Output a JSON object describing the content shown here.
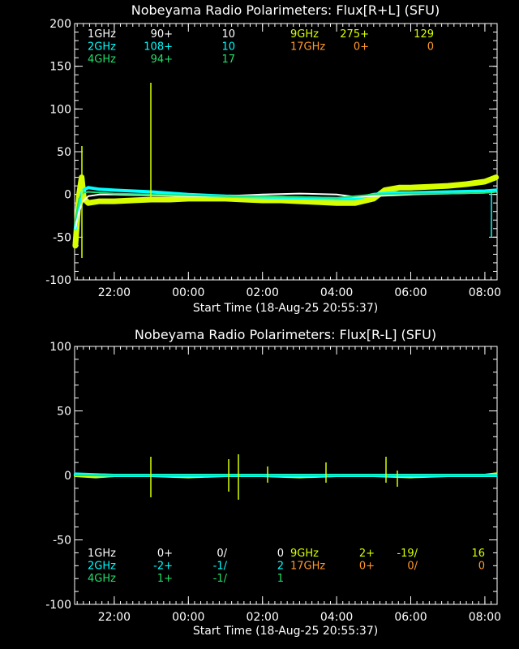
{
  "colors": {
    "background": "#000000",
    "axes": "#ffffff",
    "1GHz": "#ffffff",
    "2GHz": "#00ffff",
    "4GHz": "#22e06a",
    "9GHz": "#d8ff00",
    "17GHz": "#ff9a2a"
  },
  "chart_data": [
    {
      "type": "line",
      "title": "Nobeyama Radio Polarimeters: Flux[R+L] (SFU)",
      "xlabel": "Start Time (18-Aug-25 20:55:37)",
      "ylim": [
        -100,
        200
      ],
      "yticks": [
        -100,
        -50,
        0,
        50,
        100,
        150,
        200
      ],
      "ytick_labels": [
        "-100",
        "-50",
        "0",
        "50",
        "100",
        "150",
        "200"
      ],
      "xlim_hours": [
        20.93,
        32.33
      ],
      "xticks": [
        22,
        24,
        26,
        28,
        30,
        32
      ],
      "xtick_labels": [
        "22:00",
        "00:00",
        "02:00",
        "04:00",
        "06:00",
        "08:00"
      ],
      "grid": false,
      "legend_rows": [
        [
          {
            "band": "1GHz",
            "c1": "90+",
            "c2": "10",
            "colorKey": "1GHz"
          },
          {
            "band": "9GHz",
            "c1": "275+",
            "c2": "129",
            "colorKey": "9GHz"
          }
        ],
        [
          {
            "band": "2GHz",
            "c1": "108+",
            "c2": "10",
            "colorKey": "2GHz"
          },
          {
            "band": "17GHz",
            "c1": "0+",
            "c2": "0",
            "colorKey": "17GHz"
          }
        ],
        [
          {
            "band": "4GHz",
            "c1": "94+",
            "c2": "17",
            "colorKey": "4GHz"
          }
        ]
      ],
      "series": [
        {
          "name": "9GHz",
          "colorKey": "9GHz",
          "x": [
            20.95,
            21.05,
            21.12,
            21.18,
            21.3,
            21.6,
            22,
            22.5,
            23,
            23.5,
            24,
            24.5,
            25,
            25.5,
            26,
            26.5,
            27,
            27.5,
            28,
            28.5,
            29,
            29.3,
            29.7,
            30,
            30.5,
            31,
            31.5,
            32,
            32.3
          ],
          "y": [
            -60,
            0,
            20,
            -5,
            -10,
            -8,
            -8,
            -7,
            -6,
            -6,
            -5,
            -5,
            -5,
            -6,
            -7,
            -7,
            -8,
            -9,
            -10,
            -10,
            -5,
            5,
            8,
            8,
            9,
            10,
            12,
            15,
            20
          ]
        },
        {
          "name": "2GHz",
          "colorKey": "2GHz",
          "x": [
            20.95,
            21.05,
            21.15,
            21.3,
            21.6,
            22,
            23,
            24,
            25,
            26,
            27,
            28,
            28.5,
            29,
            29.5,
            30,
            31,
            32,
            32.3
          ],
          "y": [
            -40,
            -10,
            5,
            8,
            6,
            5,
            3,
            0,
            -2,
            -3,
            -4,
            -5,
            -5,
            0,
            2,
            2,
            3,
            4,
            5
          ]
        },
        {
          "name": "1GHz",
          "colorKey": "1GHz",
          "x": [
            20.95,
            21.05,
            21.15,
            21.3,
            21.6,
            22,
            23,
            24,
            25,
            26,
            27,
            28,
            28.5,
            29,
            29.5,
            30,
            31,
            32,
            32.3
          ],
          "y": [
            -40,
            -20,
            -8,
            -2,
            0,
            0,
            -1,
            -2,
            -2,
            0,
            1,
            0,
            -3,
            -2,
            -1,
            0,
            1,
            2,
            3
          ]
        },
        {
          "name": "4GHz",
          "colorKey": "4GHz",
          "x": [
            20.95,
            21.05,
            21.15,
            21.3,
            22,
            23,
            24,
            25,
            26,
            27,
            28,
            29,
            30,
            31,
            32,
            32.3
          ],
          "y": [
            -30,
            -5,
            2,
            3,
            1,
            0,
            -1,
            -2,
            -2,
            -3,
            -4,
            0,
            1,
            1,
            2,
            3
          ]
        }
      ]
    },
    {
      "type": "line",
      "title": "Nobeyama Radio Polarimeters: Flux[R-L] (SFU)",
      "xlabel": "Start Time (18-Aug-25 20:55:37)",
      "ylim": [
        -100,
        100
      ],
      "yticks": [
        -100,
        -50,
        0,
        50,
        100
      ],
      "ytick_labels": [
        "-100",
        "-50",
        "0",
        "50",
        "100"
      ],
      "xlim_hours": [
        20.93,
        32.33
      ],
      "xticks": [
        22,
        24,
        26,
        28,
        30,
        32
      ],
      "xtick_labels": [
        "22:00",
        "00:00",
        "02:00",
        "04:00",
        "06:00",
        "08:00"
      ],
      "grid": false,
      "legend_rows": [
        [
          {
            "band": "1GHz",
            "c1": "0+",
            "c2": "0/",
            "c3": "0",
            "colorKey": "1GHz"
          },
          {
            "band": "9GHz",
            "c1": "2+",
            "c2": "-19/",
            "c3": "16",
            "colorKey": "9GHz"
          }
        ],
        [
          {
            "band": "2GHz",
            "c1": "-2+",
            "c2": "-1/",
            "c3": "2",
            "colorKey": "2GHz"
          },
          {
            "band": "17GHz",
            "c1": "0+",
            "c2": "0/",
            "c3": "0",
            "colorKey": "17GHz"
          }
        ],
        [
          {
            "band": "4GHz",
            "c1": "1+",
            "c2": "-1/",
            "c3": "1",
            "colorKey": "4GHz"
          }
        ]
      ],
      "series": [
        {
          "name": "9GHz",
          "colorKey": "9GHz",
          "x": [
            20.95,
            21.5,
            22,
            23,
            24,
            25,
            26,
            27,
            28,
            29,
            30,
            31,
            32,
            32.3
          ],
          "y": [
            0,
            -1,
            0,
            0,
            -1,
            0,
            0,
            -1,
            0,
            0,
            -1,
            0,
            0,
            1
          ]
        },
        {
          "name": "2GHz",
          "colorKey": "2GHz",
          "x": [
            20.95,
            22,
            24,
            26,
            28,
            30,
            32,
            32.3
          ],
          "y": [
            1,
            0,
            0,
            0,
            0,
            0,
            0,
            0
          ]
        },
        {
          "name": "4GHz",
          "colorKey": "4GHz",
          "x": [
            20.95,
            22,
            24,
            26,
            28,
            30,
            32,
            32.3
          ],
          "y": [
            0,
            0,
            0,
            0,
            0,
            0,
            0,
            0
          ]
        }
      ]
    }
  ]
}
